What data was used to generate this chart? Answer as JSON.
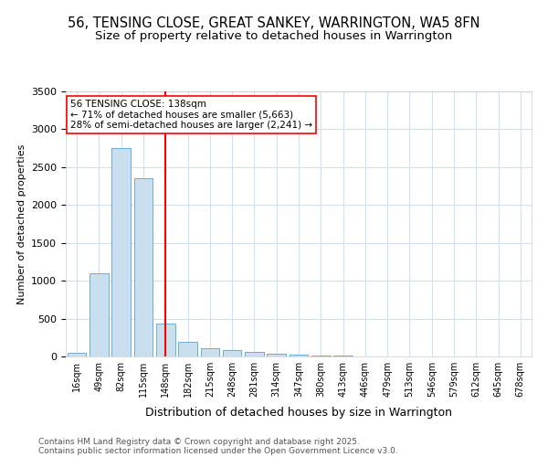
{
  "title_line1": "56, TENSING CLOSE, GREAT SANKEY, WARRINGTON, WA5 8FN",
  "title_line2": "Size of property relative to detached houses in Warrington",
  "xlabel": "Distribution of detached houses by size in Warrington",
  "ylabel": "Number of detached properties",
  "categories": [
    "16sqm",
    "49sqm",
    "82sqm",
    "115sqm",
    "148sqm",
    "182sqm",
    "215sqm",
    "248sqm",
    "281sqm",
    "314sqm",
    "347sqm",
    "380sqm",
    "413sqm",
    "446sqm",
    "479sqm",
    "513sqm",
    "546sqm",
    "579sqm",
    "612sqm",
    "645sqm",
    "678sqm"
  ],
  "values": [
    50,
    1100,
    2750,
    2350,
    430,
    190,
    110,
    80,
    55,
    35,
    25,
    15,
    10,
    5,
    5,
    5,
    5,
    5,
    5,
    5,
    0
  ],
  "bar_color": "#c9dff0",
  "bar_edge_color": "#6aaed6",
  "vline_x_index": 4,
  "vline_color": "red",
  "ylim": [
    0,
    3500
  ],
  "annotation_text": "56 TENSING CLOSE: 138sqm\n← 71% of detached houses are smaller (5,663)\n28% of semi-detached houses are larger (2,241) →",
  "annotation_box_color": "white",
  "annotation_box_edge_color": "red",
  "footnote_line1": "Contains HM Land Registry data © Crown copyright and database right 2025.",
  "footnote_line2": "Contains public sector information licensed under the Open Government Licence v3.0.",
  "background_color": "white",
  "grid_color": "#d0e0f0"
}
